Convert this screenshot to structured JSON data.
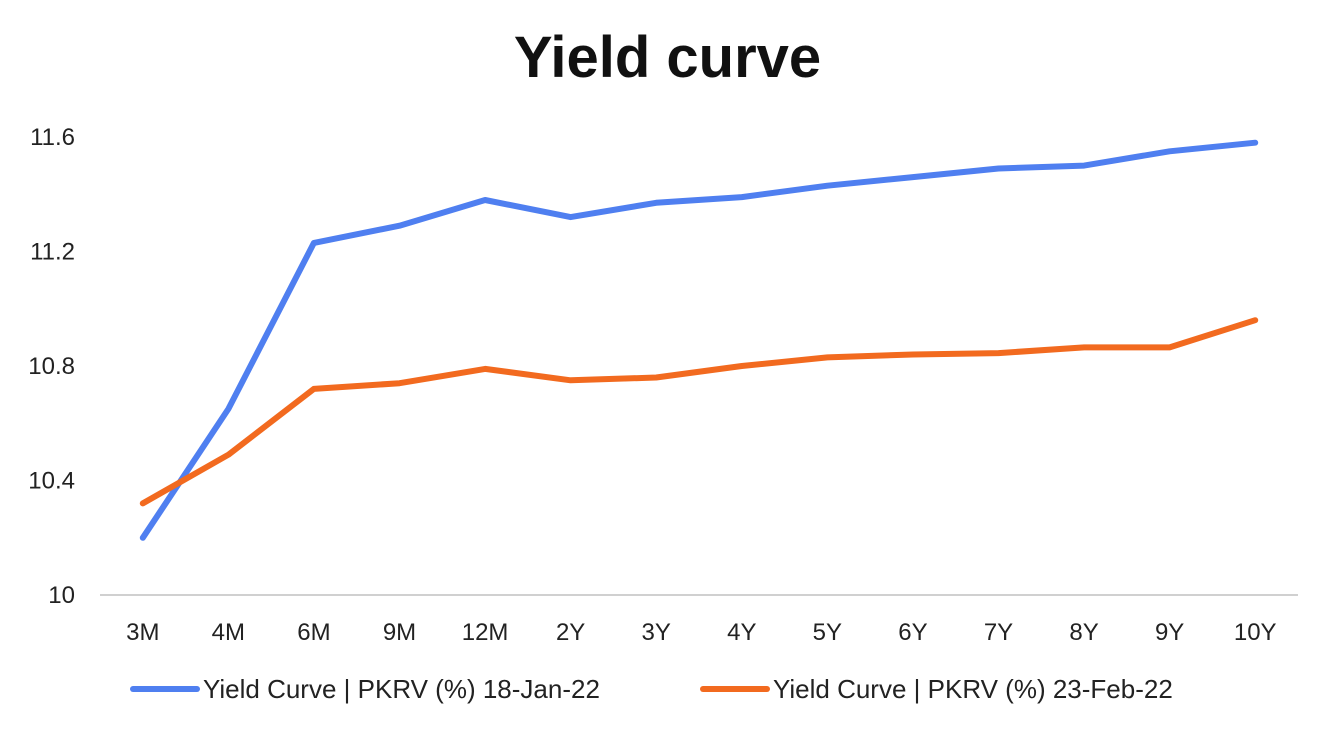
{
  "chart_data": {
    "type": "line",
    "title": "Yield curve",
    "xlabel": "",
    "ylabel": "",
    "categories": [
      "3M",
      "4M",
      "6M",
      "9M",
      "12M",
      "2Y",
      "3Y",
      "4Y",
      "5Y",
      "6Y",
      "7Y",
      "8Y",
      "9Y",
      "10Y"
    ],
    "ylim": [
      10,
      11.6
    ],
    "yticks": [
      "10",
      "10.4",
      "10.8",
      "11.2",
      "11.6"
    ],
    "grid": false,
    "legend_position": "bottom",
    "series": [
      {
        "name": "Yield Curve | PKRV (%) 18-Jan-22",
        "color": "#4f7ff0",
        "values": [
          10.2,
          10.65,
          11.23,
          11.29,
          11.38,
          11.32,
          11.37,
          11.39,
          11.43,
          11.46,
          11.49,
          11.5,
          11.55,
          11.58
        ]
      },
      {
        "name": "Yield Curve | PKRV (%) 23-Feb-22",
        "color": "#f26a1f",
        "values": [
          10.32,
          10.49,
          10.72,
          10.74,
          10.79,
          10.75,
          10.76,
          10.8,
          10.83,
          10.84,
          10.845,
          10.865,
          10.865,
          10.96
        ]
      }
    ]
  }
}
